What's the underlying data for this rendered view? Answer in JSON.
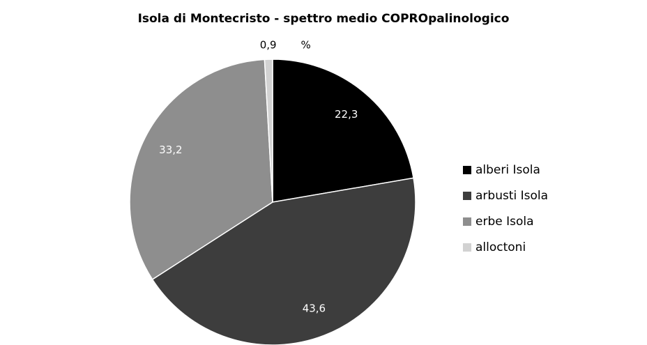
{
  "chart_data": {
    "type": "pie",
    "title": "Isola di Montecristo - spettro medio COPROpalinologico",
    "categories": [
      "alberi Isola",
      "arbusti Isola",
      "erbe Isola",
      "alloctoni"
    ],
    "values": [
      22.3,
      43.6,
      33.2,
      0.9
    ],
    "value_labels": [
      "22,3",
      "43,6",
      "33,2",
      "0,9"
    ],
    "unit_label": "%",
    "colors": [
      "#000000",
      "#3d3d3d",
      "#8e8e8e",
      "#d2d2d2"
    ],
    "legend": "right"
  }
}
